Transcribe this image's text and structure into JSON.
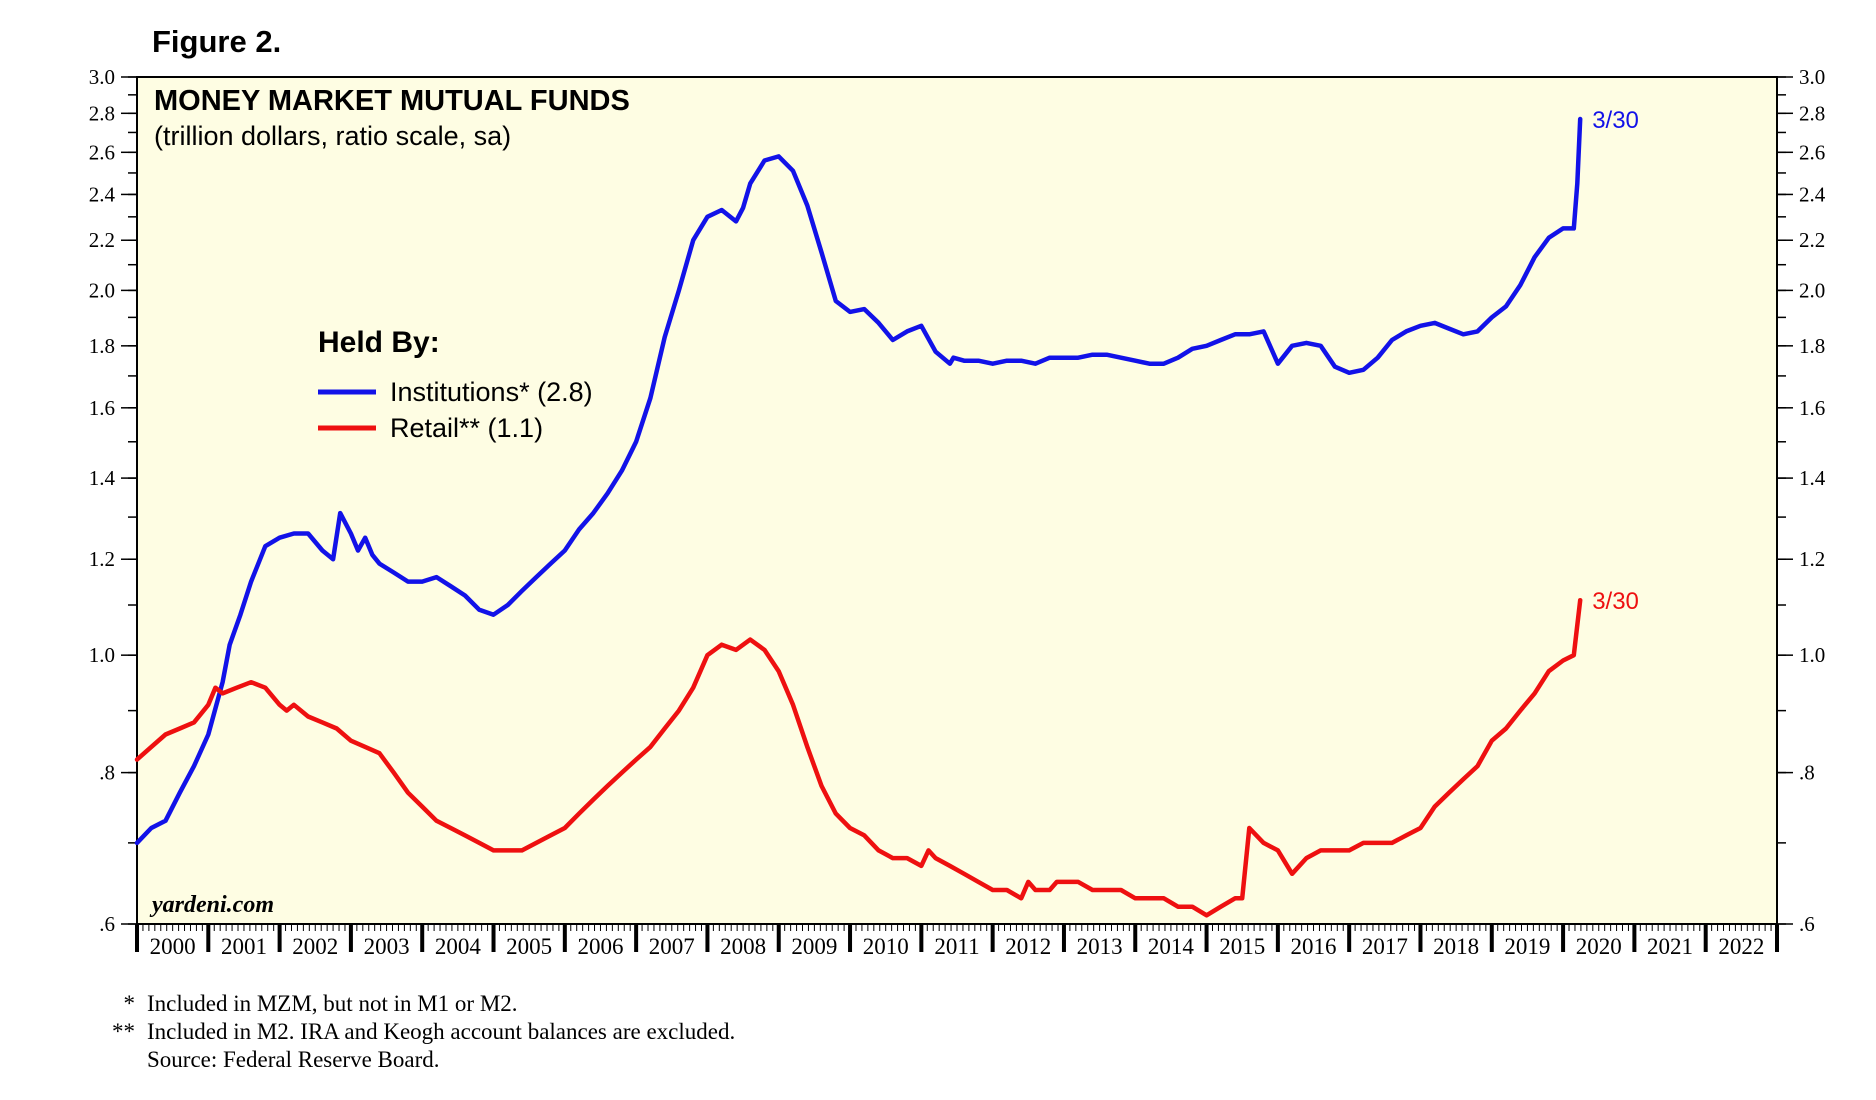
{
  "figure_label": "Figure 2.",
  "colors": {
    "institutions": "#1212e8",
    "retail": "#ee1010",
    "plot_bg": "#fefde3"
  },
  "chart_data": {
    "type": "line",
    "title": "MONEY MARKET MUTUAL FUNDS",
    "subtitle": "(trillion dollars, ratio scale, sa)",
    "scale": "log",
    "ylim": [
      0.6,
      3.0
    ],
    "xlim": [
      2000.0,
      2023.0
    ],
    "y_ticks": [
      {
        "value": 0.6,
        "label": ".6"
      },
      {
        "value": 0.8,
        "label": ".8"
      },
      {
        "value": 1.0,
        "label": "1.0"
      },
      {
        "value": 1.2,
        "label": "1.2"
      },
      {
        "value": 1.4,
        "label": "1.4"
      },
      {
        "value": 1.6,
        "label": "1.6"
      },
      {
        "value": 1.8,
        "label": "1.8"
      },
      {
        "value": 2.0,
        "label": "2.0"
      },
      {
        "value": 2.2,
        "label": "2.2"
      },
      {
        "value": 2.4,
        "label": "2.4"
      },
      {
        "value": 2.6,
        "label": "2.6"
      },
      {
        "value": 2.8,
        "label": "2.8"
      },
      {
        "value": 3.0,
        "label": "3.0"
      }
    ],
    "x_labels": [
      "2000",
      "2001",
      "2002",
      "2003",
      "2004",
      "2005",
      "2006",
      "2007",
      "2008",
      "2009",
      "2010",
      "2011",
      "2012",
      "2013",
      "2014",
      "2015",
      "2016",
      "2017",
      "2018",
      "2019",
      "2020",
      "2021",
      "2022"
    ],
    "legend_title": "Held By:",
    "watermark": "yardeni.com",
    "series": [
      {
        "name": "Institutions* (2.8)",
        "end_label": "3/30",
        "x": [
          2000.0,
          2000.2,
          2000.4,
          2000.6,
          2000.8,
          2001.0,
          2001.2,
          2001.3,
          2001.45,
          2001.6,
          2001.8,
          2002.0,
          2002.2,
          2002.4,
          2002.6,
          2002.75,
          2002.85,
          2003.0,
          2003.1,
          2003.2,
          2003.3,
          2003.4,
          2003.6,
          2003.8,
          2004.0,
          2004.2,
          2004.4,
          2004.6,
          2004.8,
          2005.0,
          2005.2,
          2005.4,
          2005.6,
          2005.8,
          2006.0,
          2006.2,
          2006.4,
          2006.6,
          2006.8,
          2007.0,
          2007.2,
          2007.4,
          2007.6,
          2007.8,
          2008.0,
          2008.2,
          2008.4,
          2008.5,
          2008.6,
          2008.8,
          2009.0,
          2009.2,
          2009.4,
          2009.6,
          2009.8,
          2010.0,
          2010.2,
          2010.4,
          2010.6,
          2010.8,
          2011.0,
          2011.2,
          2011.4,
          2011.45,
          2011.6,
          2011.8,
          2012.0,
          2012.2,
          2012.4,
          2012.6,
          2012.8,
          2013.0,
          2013.2,
          2013.4,
          2013.6,
          2013.8,
          2014.0,
          2014.2,
          2014.4,
          2014.6,
          2014.8,
          2015.0,
          2015.2,
          2015.4,
          2015.6,
          2015.8,
          2016.0,
          2016.2,
          2016.4,
          2016.6,
          2016.8,
          2017.0,
          2017.2,
          2017.4,
          2017.6,
          2017.8,
          2018.0,
          2018.2,
          2018.4,
          2018.6,
          2018.8,
          2019.0,
          2019.2,
          2019.4,
          2019.6,
          2019.8,
          2020.0,
          2020.15,
          2020.2,
          2020.24
        ],
        "values": [
          0.7,
          0.72,
          0.73,
          0.77,
          0.81,
          0.86,
          0.95,
          1.02,
          1.08,
          1.15,
          1.23,
          1.25,
          1.26,
          1.26,
          1.22,
          1.2,
          1.31,
          1.26,
          1.22,
          1.25,
          1.21,
          1.19,
          1.17,
          1.15,
          1.15,
          1.16,
          1.14,
          1.12,
          1.09,
          1.08,
          1.1,
          1.13,
          1.16,
          1.19,
          1.22,
          1.27,
          1.31,
          1.36,
          1.42,
          1.5,
          1.63,
          1.83,
          2.0,
          2.2,
          2.3,
          2.33,
          2.28,
          2.34,
          2.45,
          2.56,
          2.58,
          2.51,
          2.35,
          2.15,
          1.96,
          1.92,
          1.93,
          1.88,
          1.82,
          1.85,
          1.87,
          1.78,
          1.74,
          1.76,
          1.75,
          1.75,
          1.74,
          1.75,
          1.75,
          1.74,
          1.76,
          1.76,
          1.76,
          1.77,
          1.77,
          1.76,
          1.75,
          1.74,
          1.74,
          1.76,
          1.79,
          1.8,
          1.82,
          1.84,
          1.84,
          1.85,
          1.74,
          1.8,
          1.81,
          1.8,
          1.73,
          1.71,
          1.72,
          1.76,
          1.82,
          1.85,
          1.87,
          1.88,
          1.86,
          1.84,
          1.85,
          1.9,
          1.94,
          2.02,
          2.13,
          2.21,
          2.25,
          2.25,
          2.45,
          2.77
        ]
      },
      {
        "name": "Retail** (1.1)",
        "end_label": "3/30",
        "x": [
          2000.0,
          2000.2,
          2000.4,
          2000.6,
          2000.8,
          2001.0,
          2001.1,
          2001.2,
          2001.4,
          2001.6,
          2001.8,
          2002.0,
          2002.1,
          2002.2,
          2002.4,
          2002.6,
          2002.8,
          2003.0,
          2003.2,
          2003.4,
          2003.6,
          2003.8,
          2004.0,
          2004.2,
          2004.4,
          2004.6,
          2004.8,
          2005.0,
          2005.2,
          2005.4,
          2005.6,
          2005.8,
          2006.0,
          2006.2,
          2006.4,
          2006.6,
          2006.8,
          2007.0,
          2007.2,
          2007.4,
          2007.6,
          2007.8,
          2008.0,
          2008.2,
          2008.4,
          2008.6,
          2008.8,
          2009.0,
          2009.2,
          2009.4,
          2009.6,
          2009.8,
          2010.0,
          2010.2,
          2010.4,
          2010.6,
          2010.8,
          2011.0,
          2011.1,
          2011.2,
          2011.4,
          2011.6,
          2011.8,
          2012.0,
          2012.2,
          2012.4,
          2012.5,
          2012.6,
          2012.8,
          2012.9,
          2013.0,
          2013.2,
          2013.4,
          2013.6,
          2013.8,
          2014.0,
          2014.2,
          2014.4,
          2014.6,
          2014.8,
          2015.0,
          2015.2,
          2015.4,
          2015.5,
          2015.6,
          2015.8,
          2016.0,
          2016.2,
          2016.4,
          2016.6,
          2016.8,
          2017.0,
          2017.2,
          2017.4,
          2017.6,
          2017.8,
          2018.0,
          2018.2,
          2018.4,
          2018.6,
          2018.8,
          2019.0,
          2019.2,
          2019.4,
          2019.6,
          2019.8,
          2020.0,
          2020.15,
          2020.24
        ],
        "values": [
          0.82,
          0.84,
          0.86,
          0.87,
          0.88,
          0.91,
          0.94,
          0.93,
          0.94,
          0.95,
          0.94,
          0.91,
          0.9,
          0.91,
          0.89,
          0.88,
          0.87,
          0.85,
          0.84,
          0.83,
          0.8,
          0.77,
          0.75,
          0.73,
          0.72,
          0.71,
          0.7,
          0.69,
          0.69,
          0.69,
          0.7,
          0.71,
          0.72,
          0.74,
          0.76,
          0.78,
          0.8,
          0.82,
          0.84,
          0.87,
          0.9,
          0.94,
          1.0,
          1.02,
          1.01,
          1.03,
          1.01,
          0.97,
          0.91,
          0.84,
          0.78,
          0.74,
          0.72,
          0.71,
          0.69,
          0.68,
          0.68,
          0.67,
          0.69,
          0.68,
          0.67,
          0.66,
          0.65,
          0.64,
          0.64,
          0.63,
          0.65,
          0.64,
          0.64,
          0.65,
          0.65,
          0.65,
          0.64,
          0.64,
          0.64,
          0.63,
          0.63,
          0.63,
          0.62,
          0.62,
          0.61,
          0.62,
          0.63,
          0.63,
          0.72,
          0.7,
          0.69,
          0.66,
          0.68,
          0.69,
          0.69,
          0.69,
          0.7,
          0.7,
          0.7,
          0.71,
          0.72,
          0.75,
          0.77,
          0.79,
          0.81,
          0.85,
          0.87,
          0.9,
          0.93,
          0.97,
          0.99,
          1.0,
          1.11
        ]
      }
    ]
  },
  "footnotes": [
    {
      "mark": "*",
      "text": "Included in MZM, but not in M1 or M2."
    },
    {
      "mark": "**",
      "text": "Included in M2. IRA and Keogh account balances are excluded."
    },
    {
      "mark": "",
      "text": "Source: Federal Reserve Board."
    }
  ]
}
